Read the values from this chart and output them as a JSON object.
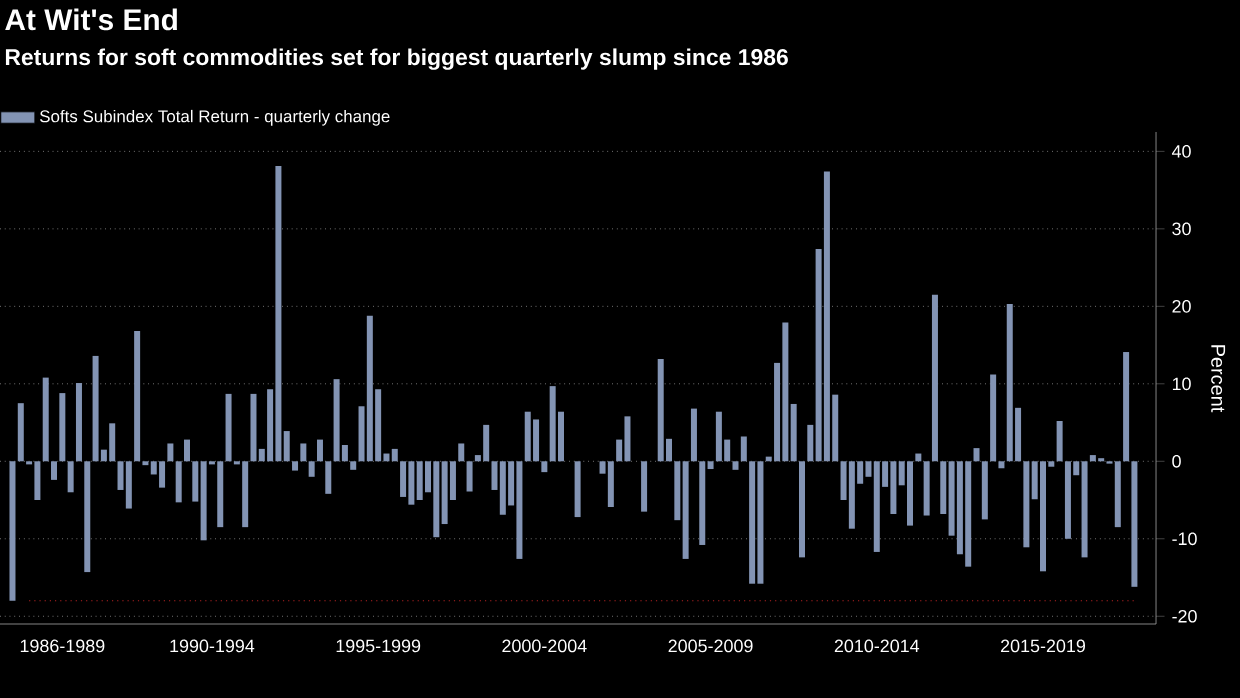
{
  "chart_data": {
    "type": "bar",
    "title": "At Wit's End",
    "subtitle": "Returns for soft commodities set for biggest quarterly slump since 1986",
    "ylabel": "Percent",
    "categories": [
      null,
      null,
      null,
      null,
      null,
      null,
      "1986-1989",
      null,
      null,
      null,
      null,
      null,
      null,
      null,
      null,
      null,
      null,
      null,
      null,
      null,
      null,
      null,
      null,
      null,
      "1990-1994",
      null,
      null,
      null,
      null,
      null,
      null,
      null,
      null,
      null,
      null,
      null,
      null,
      null,
      null,
      null,
      null,
      null,
      null,
      null,
      "1995-1999",
      null,
      null,
      null,
      null,
      null,
      null,
      null,
      null,
      null,
      null,
      null,
      null,
      null,
      null,
      null,
      null,
      null,
      null,
      null,
      "2000-2004",
      null,
      null,
      null,
      null,
      null,
      null,
      null,
      null,
      null,
      null,
      null,
      null,
      null,
      null,
      null,
      null,
      null,
      null,
      null,
      "2005-2009",
      null,
      null,
      null,
      null,
      null,
      null,
      null,
      null,
      null,
      null,
      null,
      null,
      null,
      null,
      null,
      null,
      null,
      null,
      null,
      "2010-2014",
      null,
      null,
      null,
      null,
      null,
      null,
      null,
      null,
      null,
      null,
      null,
      null,
      null,
      null,
      null,
      null,
      null,
      null,
      null,
      "2015-2019",
      null,
      null,
      null,
      null,
      null,
      null,
      null,
      null,
      null,
      null,
      null
    ],
    "series": [
      {
        "name": "Softs Subindex Total Return - quarterly change",
        "color": "#8394b4",
        "values": [
          -18.0,
          7.5,
          -0.4,
          -5.0,
          10.8,
          -2.4,
          8.8,
          -4.0,
          10.1,
          -14.3,
          13.6,
          1.5,
          4.9,
          -3.7,
          -6.1,
          16.8,
          -0.5,
          -1.7,
          -3.4,
          2.3,
          -5.3,
          2.8,
          -5.2,
          -10.2,
          -0.4,
          -8.5,
          8.7,
          -0.4,
          -8.5,
          8.7,
          1.6,
          9.3,
          38.1,
          3.9,
          -1.2,
          2.3,
          -2.0,
          2.8,
          -4.2,
          10.6,
          2.1,
          -1.1,
          7.1,
          18.8,
          9.3,
          1.0,
          1.6,
          -4.6,
          -5.6,
          -5.0,
          -4.0,
          -9.8,
          -8.1,
          -5.0,
          2.3,
          -3.9,
          0.8,
          4.7,
          -3.7,
          -6.9,
          -5.7,
          -12.6,
          6.4,
          5.4,
          -1.4,
          9.7,
          6.4,
          null,
          -7.2,
          null,
          null,
          -1.6,
          -5.9,
          2.8,
          5.8,
          null,
          -6.5,
          null,
          13.2,
          2.9,
          -7.6,
          -12.6,
          6.8,
          -10.8,
          -1.0,
          6.4,
          2.8,
          -1.1,
          3.2,
          -15.8,
          -15.8,
          0.6,
          12.7,
          17.9,
          7.4,
          -12.4,
          4.7,
          27.4,
          37.4,
          8.6,
          -5.0,
          -8.7,
          -2.9,
          -2.0,
          -11.7,
          -3.3,
          -6.8,
          -3.1,
          -8.3,
          1.0,
          -7.0,
          21.5,
          -6.8,
          -9.6,
          -12.0,
          -13.6,
          1.7,
          -7.5,
          11.2,
          -0.9,
          20.3,
          6.9,
          -11.1,
          -4.9,
          -14.2,
          -0.7,
          5.2,
          -10.0,
          -1.8,
          -12.4,
          0.8,
          0.4,
          -0.3,
          -8.5,
          14.1,
          -16.2
        ]
      }
    ],
    "ylim": [
      -21,
      42.5
    ],
    "yticks": [
      -20,
      -10,
      0,
      10,
      20,
      30,
      40
    ],
    "ref_lines": [
      {
        "axis": "y",
        "value": -18,
        "color": "#b22222",
        "line_style": "dotted"
      }
    ],
    "grid": "y",
    "legend": "top left"
  }
}
